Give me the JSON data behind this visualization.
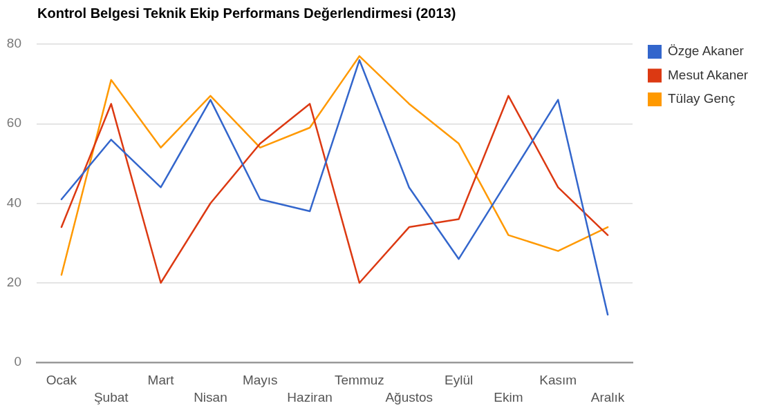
{
  "chart_data": {
    "type": "line",
    "title": "Kontrol Belgesi Teknik Ekip Performans Değerlendirmesi (2013)",
    "categories": [
      "Ocak",
      "Şubat",
      "Mart",
      "Nisan",
      "Mayıs",
      "Haziran",
      "Temmuz",
      "Ağustos",
      "Eylül",
      "Ekim",
      "Kasım",
      "Aralık"
    ],
    "series": [
      {
        "name": "Özge Akaner",
        "color": "#3366cc",
        "values": [
          41,
          56,
          44,
          66,
          41,
          38,
          76,
          44,
          26,
          46,
          66,
          12
        ]
      },
      {
        "name": "Mesut Akaner",
        "color": "#dc3912",
        "values": [
          34,
          65,
          20,
          40,
          55,
          65,
          20,
          34,
          36,
          67,
          44,
          32
        ]
      },
      {
        "name": "Tülay Genç",
        "color": "#ff9900",
        "values": [
          22,
          71,
          54,
          67,
          54,
          59,
          77,
          65,
          55,
          32,
          28,
          34
        ]
      }
    ],
    "ylim": [
      0,
      80
    ],
    "yticks": [
      0,
      20,
      40,
      60,
      80
    ],
    "grid": "y",
    "legend": "top right"
  }
}
